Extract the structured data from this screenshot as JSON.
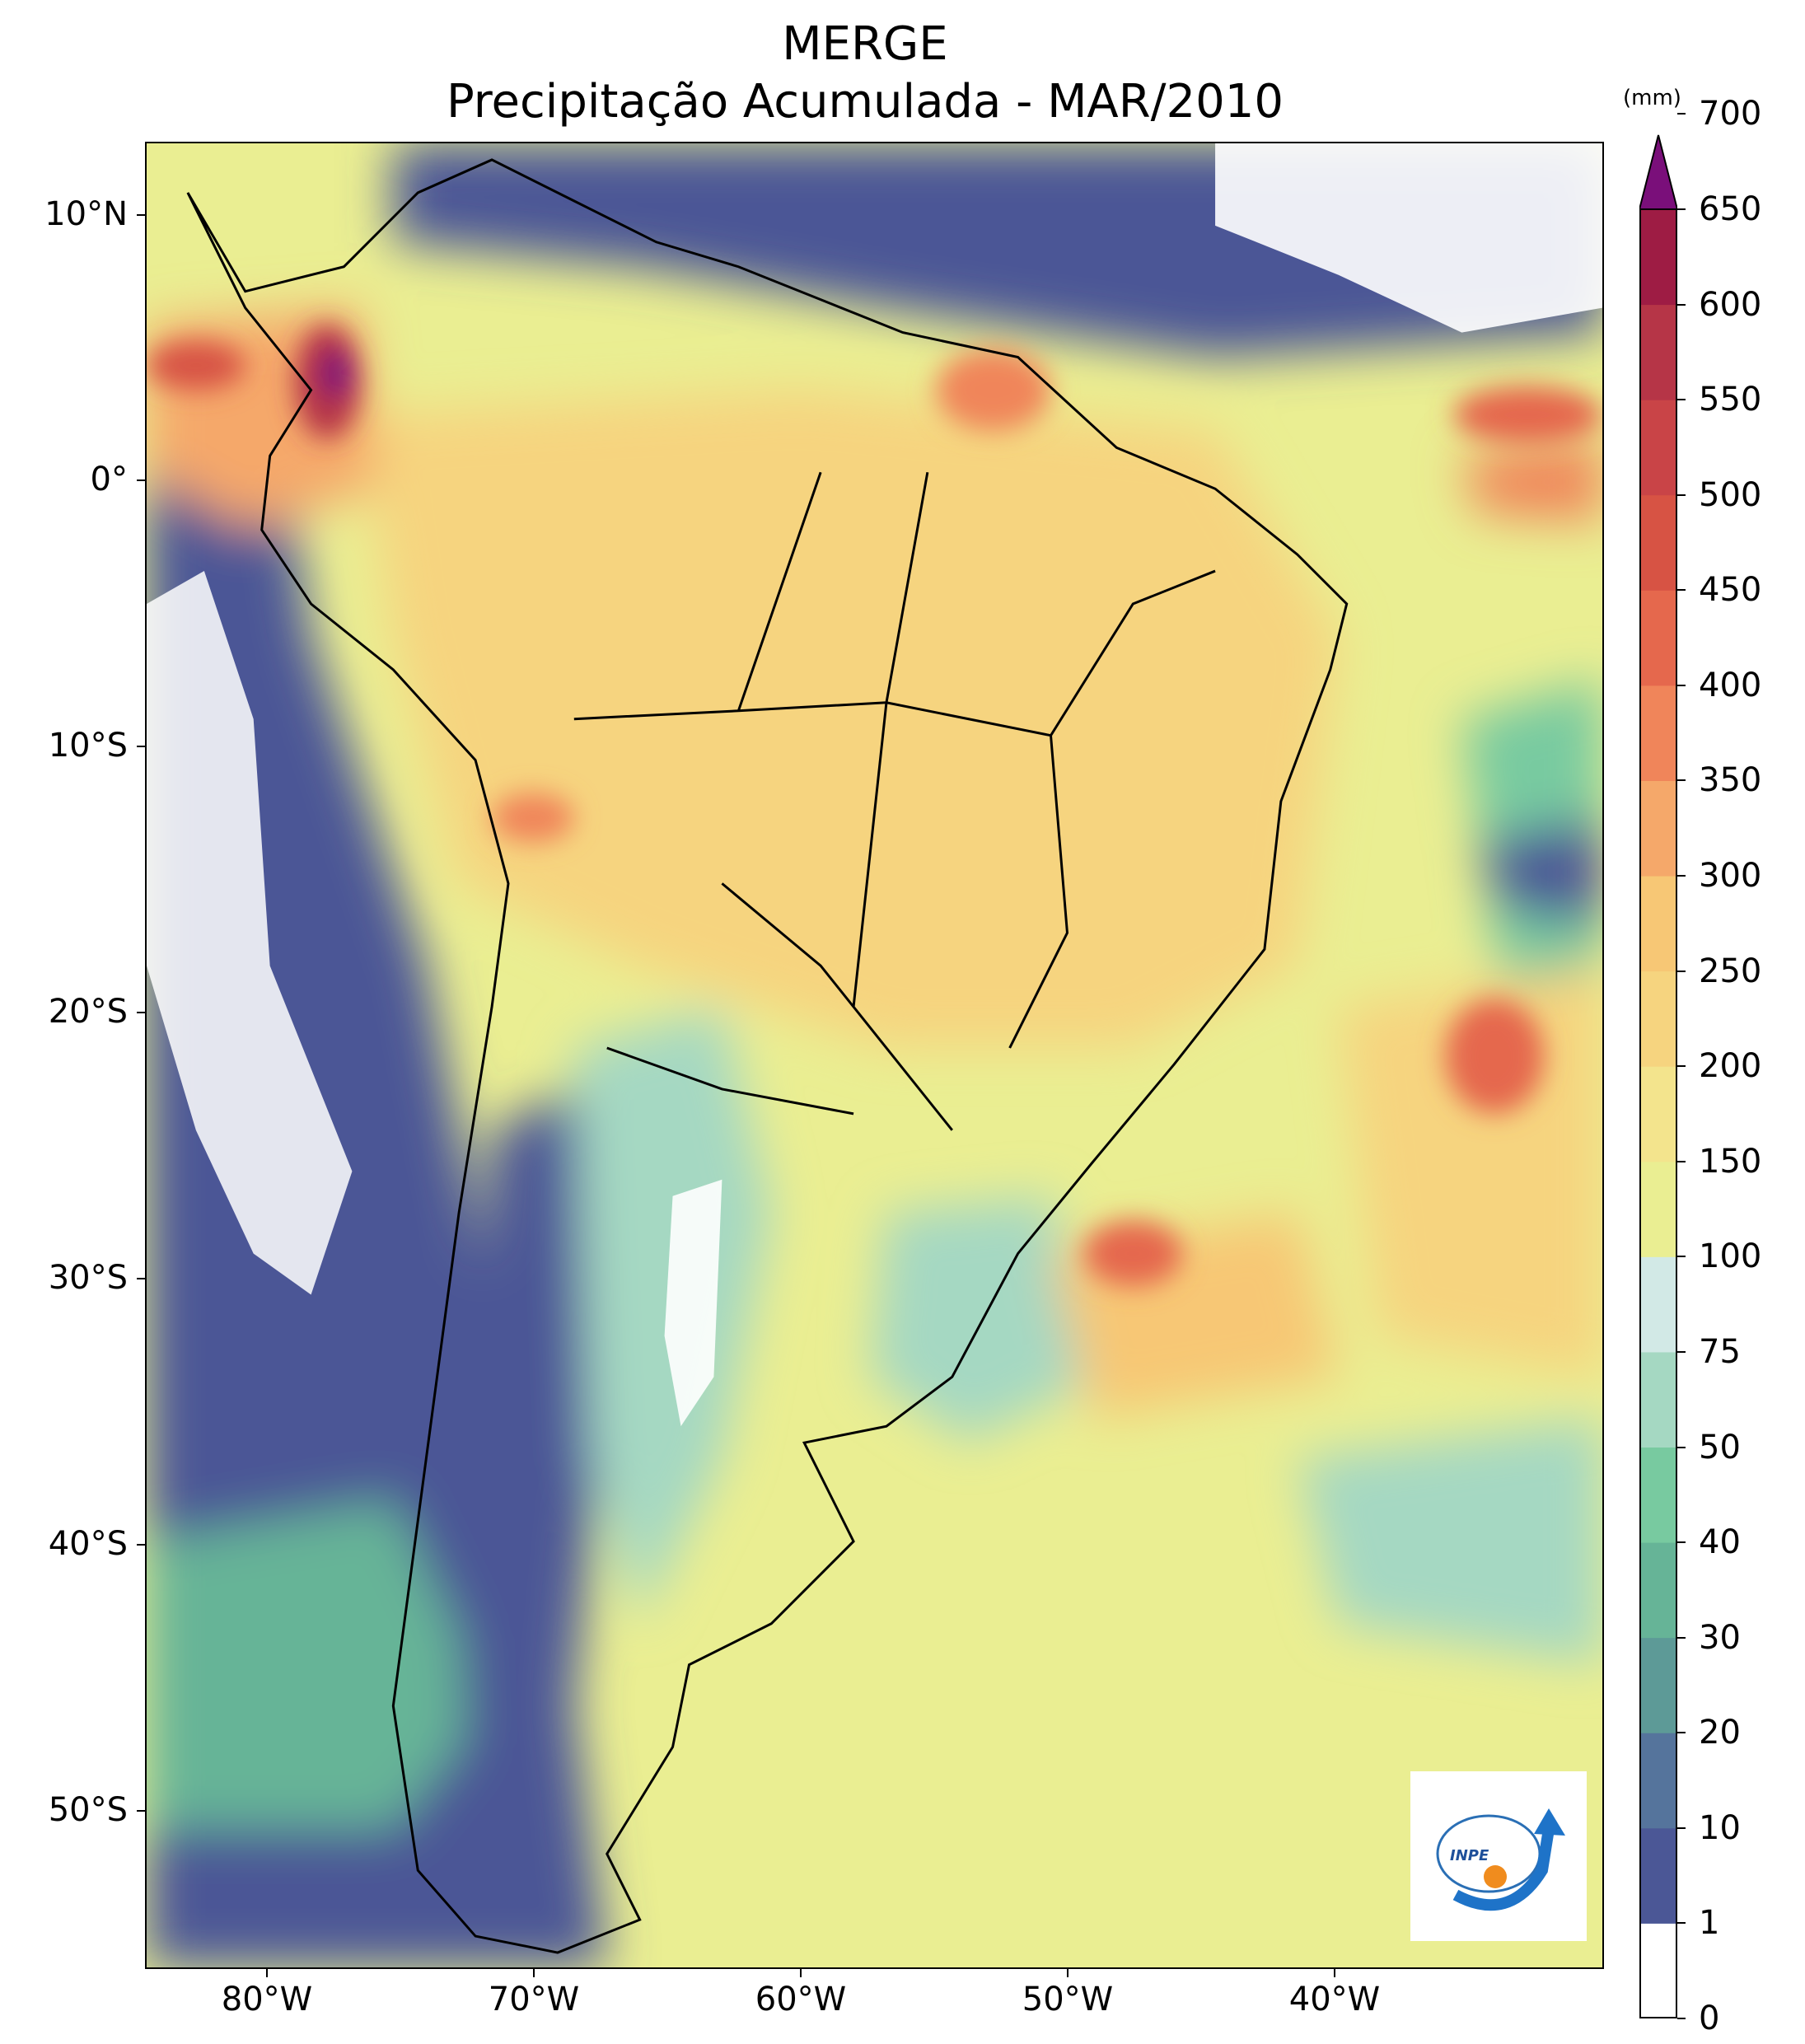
{
  "title_line1": "MERGE",
  "title_line2": "Precipitação Acumulada - MAR/2010",
  "lat_labels": [
    "10°N",
    "0°",
    "10°S",
    "20°S",
    "30°S",
    "40°S",
    "50°S"
  ],
  "lon_labels": [
    "80°W",
    "70°W",
    "60°W",
    "50°W",
    "40°W"
  ],
  "colorbar": {
    "unit": "(mm)",
    "levels": [
      "0",
      "1",
      "10",
      "20",
      "30",
      "40",
      "50",
      "75",
      "100",
      "150",
      "200",
      "250",
      "300",
      "350",
      "400",
      "450",
      "500",
      "550",
      "600",
      "650",
      "700"
    ],
    "colors": [
      "#ffffff",
      "#4b5796",
      "#55749c",
      "#5d9a97",
      "#66b497",
      "#78caa0",
      "#a5d8c2",
      "#d2e9e6",
      "#eaee92",
      "#f3e48d",
      "#f6d47f",
      "#f7c775",
      "#f5a86a",
      "#f0855a",
      "#e5684d",
      "#d75344",
      "#c94447",
      "#b63547",
      "#9e1c44"
    ],
    "extend_color": "#7a0f7a"
  },
  "logo_text": "INPE"
}
